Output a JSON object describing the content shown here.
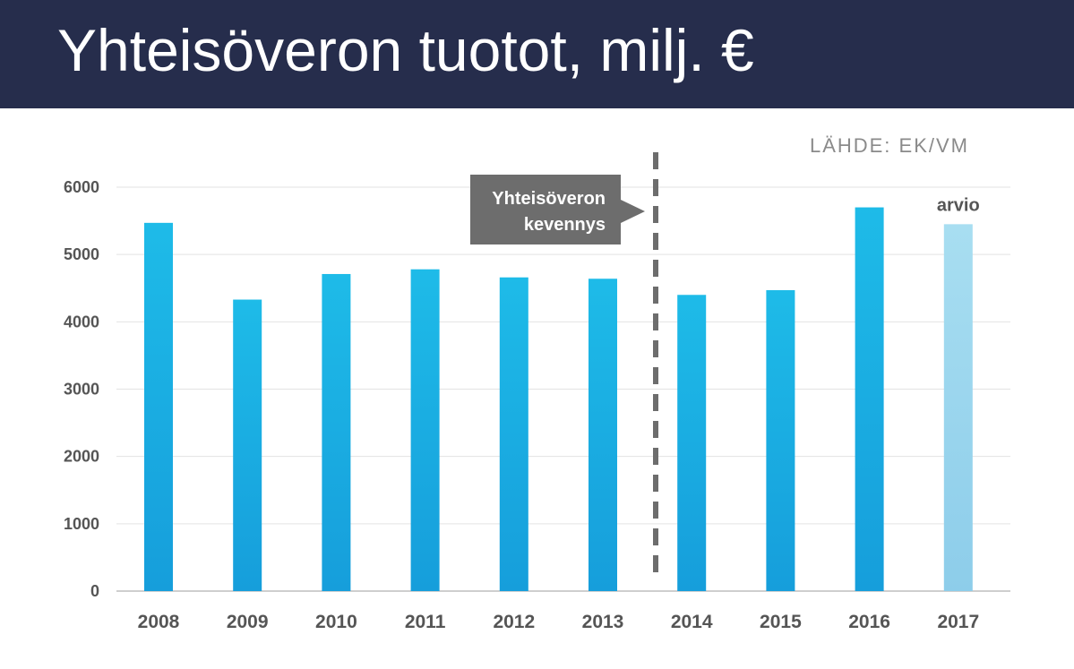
{
  "header": {
    "title": "Yhteisöveron tuotot, milj. €",
    "background": "#262d4c"
  },
  "source": "LÄHDE: EK/VM",
  "callout": {
    "lines": [
      "Yhteisöveron",
      "kevennys"
    ],
    "color": "#6d6d6d",
    "divider_between": [
      "2013",
      "2014"
    ]
  },
  "chart_data": {
    "type": "bar",
    "categories": [
      "2008",
      "2009",
      "2010",
      "2011",
      "2012",
      "2013",
      "2014",
      "2015",
      "2016",
      "2017"
    ],
    "values": [
      5470,
      4330,
      4710,
      4780,
      4660,
      4640,
      4400,
      4470,
      5700,
      5450
    ],
    "ylim": [
      0,
      6000
    ],
    "yticks": [
      0,
      1000,
      2000,
      3000,
      4000,
      5000,
      6000
    ],
    "grid": true,
    "bar_color_top": "#1ebbe8",
    "bar_color_bottom": "#169edb",
    "estimate_color_top": "#a8def1",
    "estimate_color_bottom": "#8dcdea",
    "estimate_category": "2017",
    "estimate_label": "arvio"
  }
}
